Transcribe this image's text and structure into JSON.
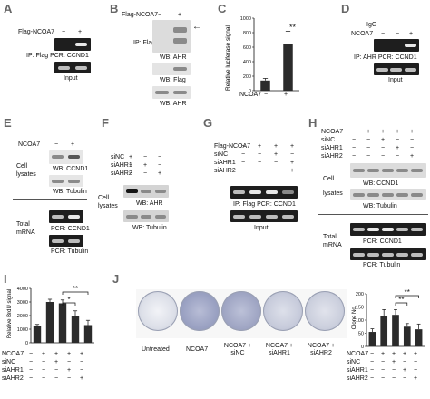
{
  "panels": {
    "A": {
      "label": "A",
      "row_label": "Flag-NCOA7",
      "lanes": [
        "−",
        "+"
      ],
      "cap1": "IP: Flag  PCR: CCND1",
      "cap2": "Input"
    },
    "B": {
      "label": "B",
      "row_label": "Flag-NCOA7",
      "lanes": [
        "−",
        "+"
      ],
      "side": "IP: Flag",
      "cap1": "WB: AHR",
      "cap2": "WB: Flag",
      "cap3": "WB: AHR",
      "arrow": "←"
    },
    "C": {
      "label": "C",
      "ylabel": "Relative luciferase signal",
      "xrow": "NCOA7",
      "lanes": [
        "−",
        "+"
      ],
      "sig": "**"
    },
    "D": {
      "label": "D",
      "igg": "IgG",
      "row_label": "NCOA7",
      "lanes": [
        "−",
        "+"
      ],
      "cap1": "IP: AHR  PCR: CCND1",
      "cap2": "Input"
    },
    "E": {
      "label": "E",
      "row_label": "NCOA7",
      "lanes": [
        "−",
        "+"
      ],
      "cell": "Cell",
      "lysates": "lysates",
      "cap1": "WB: CCND1",
      "cap2": "WB: Tubulin",
      "total": "Total",
      "mrna": "mRNA",
      "cap3": "PCR: CCND1",
      "cap4": "PCR: Tubulin"
    },
    "F": {
      "label": "F",
      "rows": [
        "siNC",
        "siAHR1",
        "siAHR2"
      ],
      "marks": [
        [
          "+",
          "−",
          "−"
        ],
        [
          "−",
          "+",
          "−"
        ],
        [
          "−",
          "−",
          "+"
        ]
      ],
      "cell": "Cell",
      "lysates": "lysates",
      "cap1": "WB: AHR",
      "cap2": "WB: Tubulin"
    },
    "G": {
      "label": "G",
      "rows": [
        "Flag-NCOA7",
        "siNC",
        "siAHR1",
        "siAHR2"
      ],
      "marks": [
        [
          "−",
          "+",
          "+",
          "+"
        ],
        [
          "−",
          "−",
          "+",
          "−"
        ],
        [
          "−",
          "−",
          "−",
          "+"
        ],
        [
          "−",
          "−",
          "−",
          "+"
        ]
      ],
      "cap1": "IP: Flag  PCR: CCND1",
      "cap2": "Input"
    },
    "H": {
      "label": "H",
      "rows": [
        "NCOA7",
        "siNC",
        "siAHR1",
        "siAHR2"
      ],
      "marks": [
        [
          "−",
          "+",
          "+",
          "+",
          "+"
        ],
        [
          "−",
          "−",
          "+",
          "−",
          "−"
        ],
        [
          "−",
          "−",
          "−",
          "+",
          "−"
        ],
        [
          "−",
          "−",
          "−",
          "−",
          "+"
        ]
      ],
      "cell": "Cell",
      "lysates": "lysates",
      "cap1": "WB: CCND1",
      "cap2": "WB: Tubulin",
      "total": "Total",
      "mrna": "mRNA",
      "cap3": "PCR: CCND1",
      "cap4": "PCR: Tubulin"
    },
    "I": {
      "label": "I",
      "ylabel": "Relative BrdU signal",
      "rows": [
        "NCOA7",
        "siNC",
        "siAHR1",
        "siAHR2"
      ],
      "marks": [
        [
          "−",
          "+",
          "+",
          "+",
          "+"
        ],
        [
          "−",
          "−",
          "+",
          "−",
          "−"
        ],
        [
          "−",
          "−",
          "−",
          "+",
          "−"
        ],
        [
          "−",
          "−",
          "−",
          "−",
          "+"
        ]
      ],
      "sig1": "*",
      "sig2": "**"
    },
    "J": {
      "label": "J",
      "plates": [
        "Untreated",
        "NCOA7",
        "NCOA7 + siNC",
        "NCOA7 + siAHR1",
        "NCOA7 + siAHR2"
      ],
      "ylabel": "Clone No.",
      "rows": [
        "NCOA7",
        "siNC",
        "siAHR1",
        "siAHR2"
      ],
      "marks": [
        [
          "−",
          "+",
          "+",
          "+",
          "+"
        ],
        [
          "−",
          "−",
          "+",
          "−",
          "−"
        ],
        [
          "−",
          "−",
          "−",
          "+",
          "−"
        ],
        [
          "−",
          "−",
          "−",
          "−",
          "+"
        ]
      ],
      "sig1": "**",
      "sig2": "**"
    }
  },
  "chart_data": [
    {
      "type": "bar",
      "panel": "C",
      "categories": [
        "−",
        "+"
      ],
      "values": [
        140,
        650
      ],
      "errors": [
        30,
        170
      ],
      "ylim": [
        0,
        1000
      ],
      "yticks": [
        0,
        200,
        400,
        600,
        800,
        1000
      ],
      "ylabel": "Relative luciferase signal"
    },
    {
      "type": "bar",
      "panel": "I",
      "categories": [
        "1",
        "2",
        "3",
        "4",
        "5"
      ],
      "values": [
        1200,
        3000,
        2900,
        2000,
        1300
      ],
      "errors": [
        150,
        200,
        250,
        350,
        350
      ],
      "ylim": [
        0,
        4000
      ],
      "yticks": [
        0,
        1000,
        2000,
        3000,
        4000
      ],
      "ylabel": "Relative BrdU signal"
    },
    {
      "type": "bar",
      "panel": "J",
      "categories": [
        "1",
        "2",
        "3",
        "4",
        "5"
      ],
      "values": [
        55,
        115,
        120,
        75,
        65
      ],
      "errors": [
        12,
        25,
        20,
        12,
        20
      ],
      "ylim": [
        0,
        200
      ],
      "yticks": [
        0,
        50,
        100,
        150,
        200
      ],
      "ylabel": "Clone No."
    }
  ]
}
